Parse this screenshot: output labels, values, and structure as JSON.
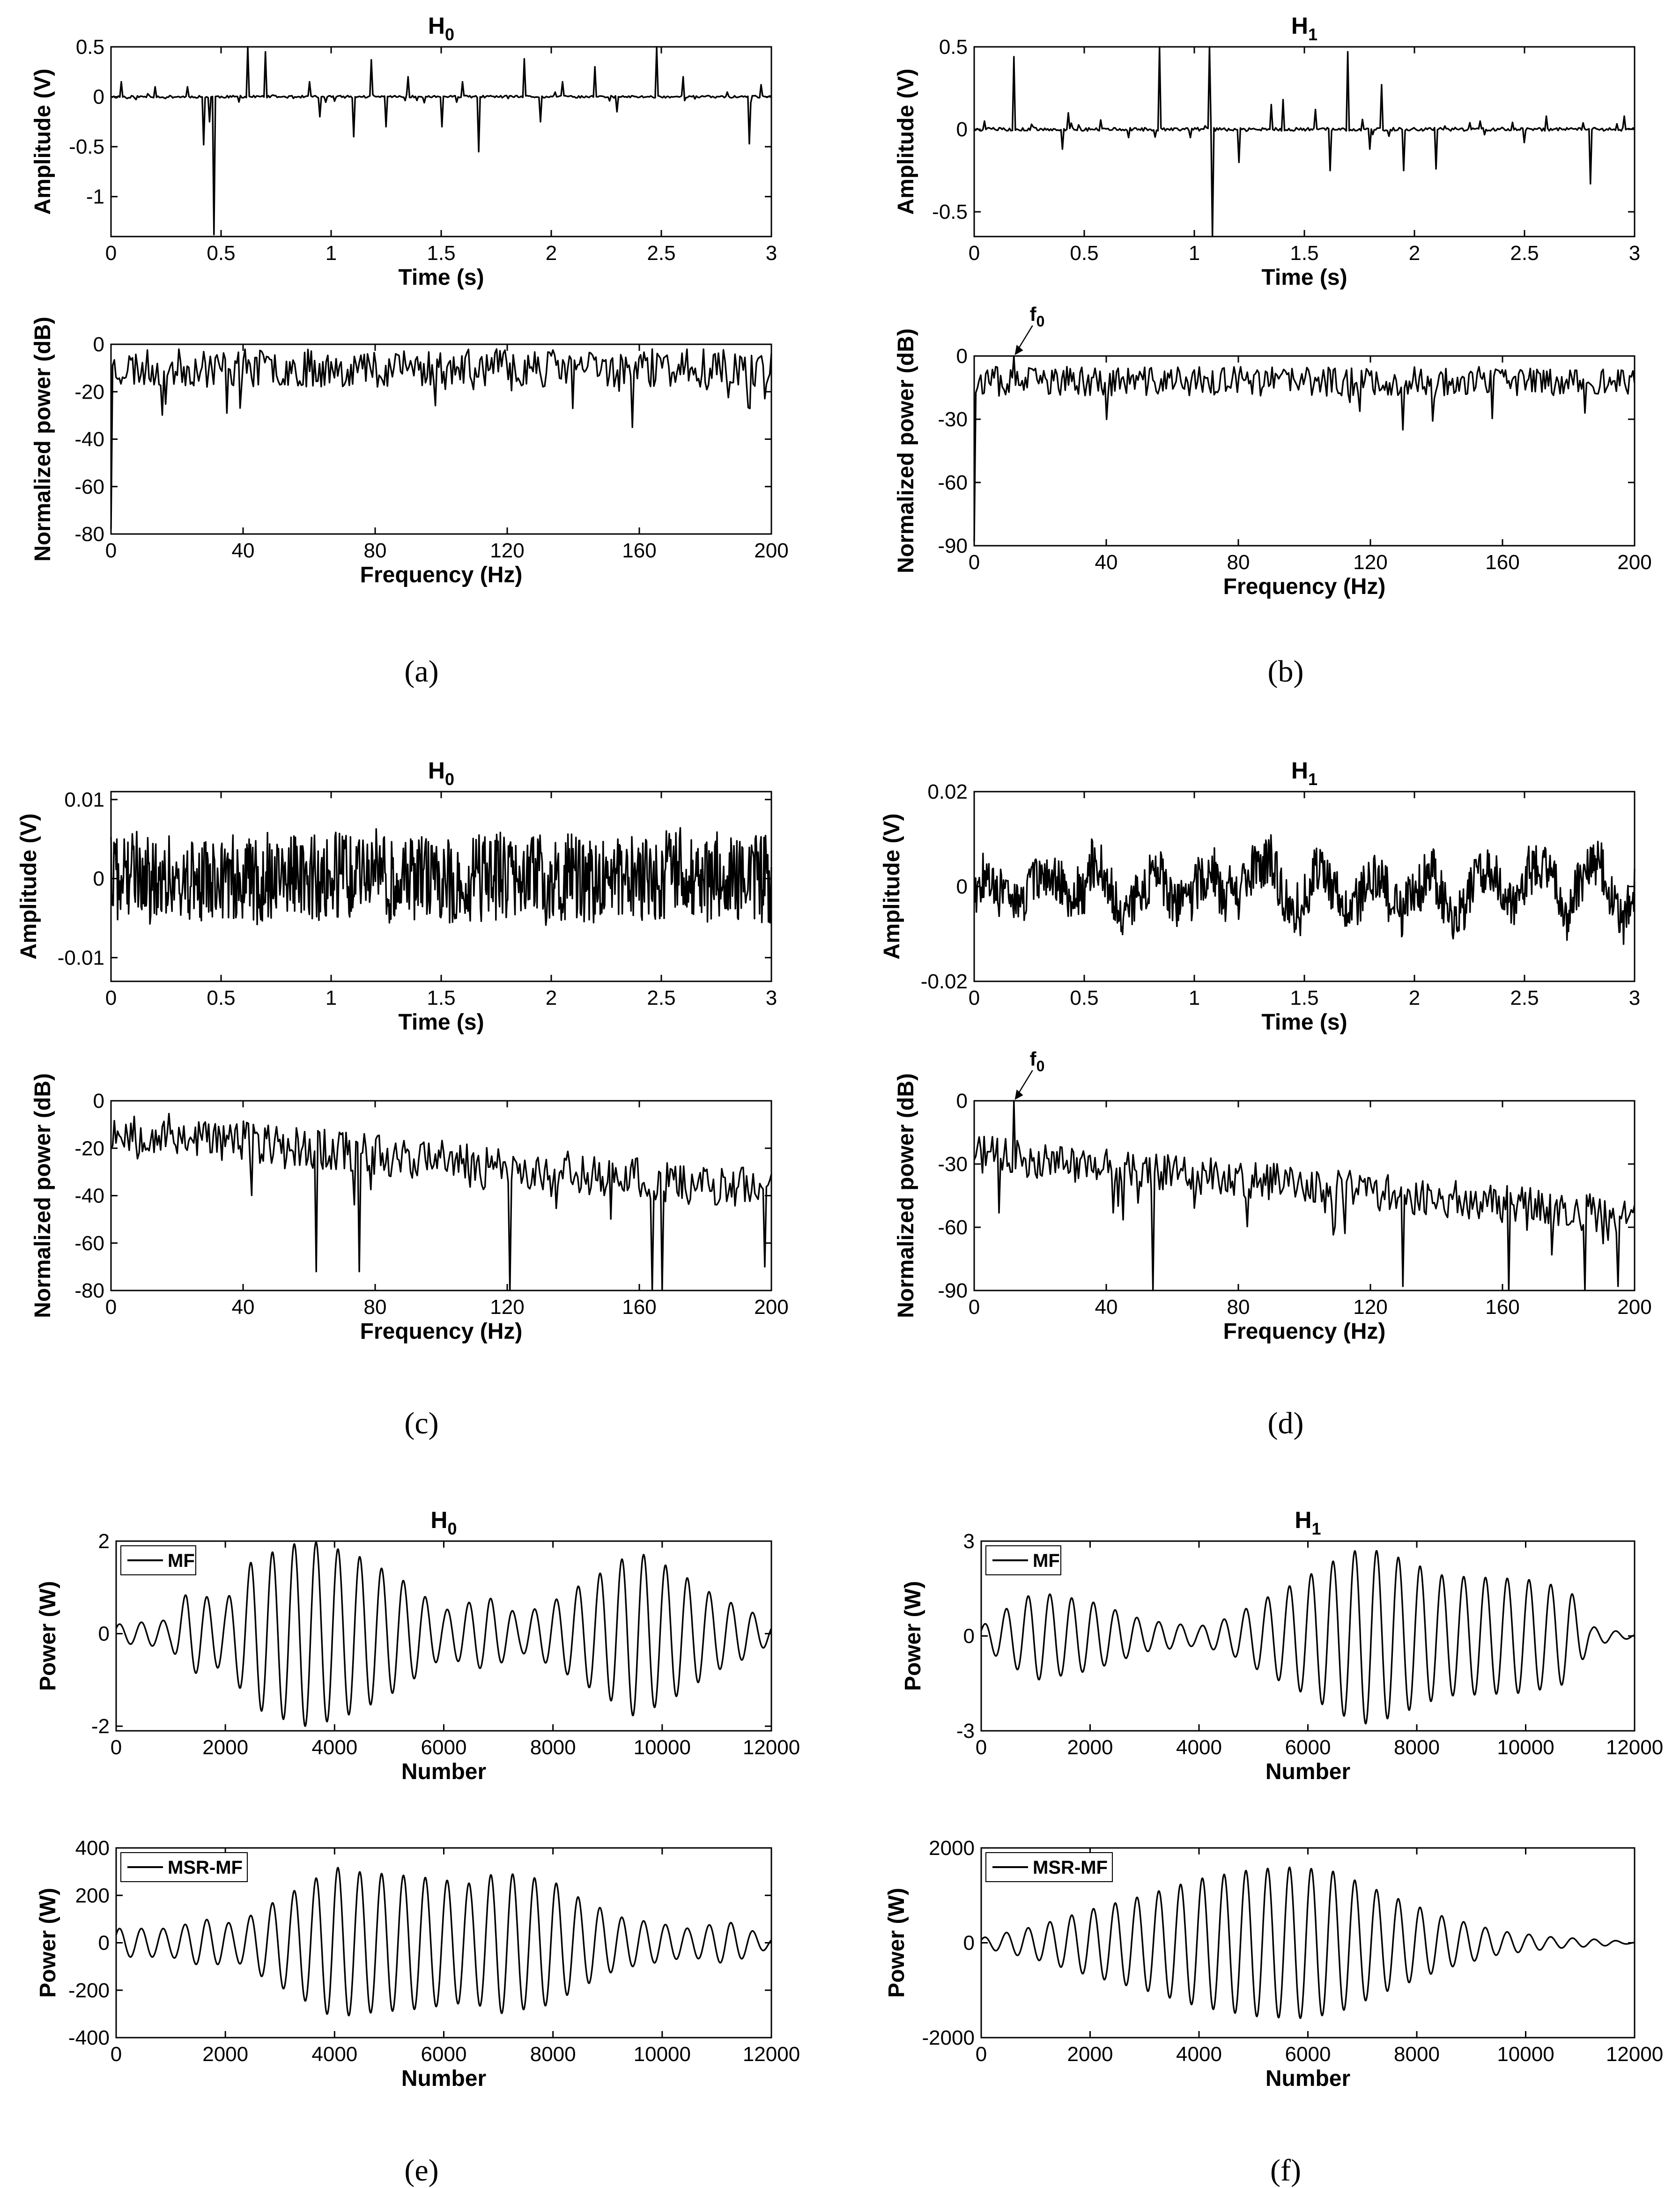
{
  "figure": {
    "subfigure_labels": [
      "(a)",
      "(b)",
      "(c)",
      "(d)",
      "(e)",
      "(f)"
    ]
  },
  "chart_data": [
    {
      "id": "a_time",
      "type": "line",
      "title": "H",
      "title_sub": "0",
      "xlabel": "Time (s)",
      "ylabel": "Amplitude (V)",
      "xlim": [
        0,
        3
      ],
      "ylim": [
        -1.4,
        0.5
      ],
      "xticks": [
        0,
        0.5,
        1,
        1.5,
        2,
        2.5,
        3
      ],
      "xtick_labels": [
        "0",
        "0.5",
        "1",
        "1.5",
        "2",
        "2.5",
        "3"
      ],
      "yticks": [
        -1,
        -0.5,
        0,
        0.5
      ],
      "ytick_labels": [
        "-1",
        "-0.5",
        "0",
        "0.5"
      ],
      "grid": false,
      "legend": null,
      "signal": {
        "kind": "spikes",
        "n": 450,
        "seed": 11,
        "noise": 0.012,
        "spikes": [
          [
            0.05,
            0.15
          ],
          [
            0.2,
            0.1
          ],
          [
            0.35,
            0.1
          ],
          [
            0.42,
            -0.48
          ],
          [
            0.45,
            -0.25
          ],
          [
            0.47,
            -1.38
          ],
          [
            0.62,
            0.5
          ],
          [
            0.7,
            0.45
          ],
          [
            0.9,
            0.15
          ],
          [
            0.95,
            -0.2
          ],
          [
            1.1,
            -0.4
          ],
          [
            1.18,
            0.37
          ],
          [
            1.25,
            -0.3
          ],
          [
            1.35,
            0.2
          ],
          [
            1.5,
            -0.3
          ],
          [
            1.6,
            0.15
          ],
          [
            1.67,
            -0.55
          ],
          [
            1.88,
            0.38
          ],
          [
            1.95,
            -0.25
          ],
          [
            2.05,
            0.15
          ],
          [
            2.2,
            0.3
          ],
          [
            2.3,
            -0.15
          ],
          [
            2.48,
            0.5
          ],
          [
            2.6,
            0.2
          ],
          [
            2.9,
            -0.47
          ],
          [
            2.95,
            0.12
          ]
        ]
      }
    },
    {
      "id": "a_freq",
      "type": "line",
      "xlabel": "Frequency (Hz)",
      "ylabel": "Normalized power (dB)",
      "xlim": [
        0,
        200
      ],
      "ylim": [
        -80,
        0
      ],
      "xticks": [
        0,
        40,
        80,
        120,
        160,
        200
      ],
      "xtick_labels": [
        "0",
        "40",
        "80",
        "120",
        "160",
        "200"
      ],
      "yticks": [
        -80,
        -60,
        -40,
        -20,
        0
      ],
      "ytick_labels": [
        "-80",
        "-60",
        "-40",
        "-20",
        "0"
      ],
      "grid": false,
      "legend": null,
      "signal": {
        "kind": "spectrum",
        "n": 400,
        "seed": 23,
        "start": -78,
        "base_start": -10,
        "base_end": -10,
        "spread": 8,
        "dip_prob": 0.04,
        "dip_depth": 15,
        "dips": [
          [
            158,
            -35
          ],
          [
            35,
            -29
          ],
          [
            140,
            -27
          ]
        ]
      }
    },
    {
      "id": "b_time",
      "type": "line",
      "title": "H",
      "title_sub": "1",
      "xlabel": "Time (s)",
      "ylabel": "Amplitude (V)",
      "xlim": [
        0,
        3
      ],
      "ylim": [
        -0.65,
        0.5
      ],
      "xticks": [
        0,
        0.5,
        1,
        1.5,
        2,
        2.5,
        3
      ],
      "xtick_labels": [
        "0",
        "0.5",
        "1",
        "1.5",
        "2",
        "2.5",
        "3"
      ],
      "yticks": [
        -0.5,
        0,
        0.5
      ],
      "ytick_labels": [
        "-0.5",
        "0",
        "0.5"
      ],
      "grid": false,
      "legend": null,
      "signal": {
        "kind": "spikes",
        "n": 450,
        "seed": 5,
        "noise": 0.01,
        "spikes": [
          [
            0.05,
            0.05
          ],
          [
            0.18,
            0.44
          ],
          [
            0.4,
            -0.12
          ],
          [
            0.43,
            0.1
          ],
          [
            0.7,
            -0.05
          ],
          [
            0.84,
            0.5
          ],
          [
            0.98,
            -0.05
          ],
          [
            1.07,
            0.5
          ],
          [
            1.08,
            -0.65
          ],
          [
            1.2,
            -0.2
          ],
          [
            1.35,
            0.15
          ],
          [
            1.4,
            0.18
          ],
          [
            1.55,
            0.12
          ],
          [
            1.62,
            -0.25
          ],
          [
            1.7,
            0.47
          ],
          [
            1.8,
            -0.12
          ],
          [
            1.85,
            0.27
          ],
          [
            1.95,
            -0.25
          ],
          [
            2.1,
            -0.24
          ],
          [
            2.3,
            0.05
          ],
          [
            2.5,
            -0.08
          ],
          [
            2.6,
            0.08
          ],
          [
            2.8,
            -0.33
          ],
          [
            2.95,
            0.08
          ]
        ]
      }
    },
    {
      "id": "b_freq",
      "type": "line",
      "xlabel": "Frequency (Hz)",
      "ylabel": "Normalized power (dB)",
      "xlim": [
        0,
        200
      ],
      "ylim": [
        -90,
        0
      ],
      "xticks": [
        0,
        40,
        80,
        120,
        160,
        200
      ],
      "xtick_labels": [
        "0",
        "40",
        "80",
        "120",
        "160",
        "200"
      ],
      "yticks": [
        -90,
        -60,
        -30,
        0
      ],
      "ytick_labels": [
        "-90",
        "-60",
        "-30",
        "0"
      ],
      "grid": false,
      "legend": null,
      "annotations": [
        {
          "text": "f",
          "sub": "0",
          "x": 12,
          "y": 0
        }
      ],
      "signal": {
        "kind": "spectrum",
        "n": 400,
        "seed": 37,
        "start": -88,
        "base_start": -12,
        "base_end": -12,
        "spread": 7,
        "dip_prob": 0.04,
        "dip_depth": 13,
        "dips": [
          [
            130,
            -35
          ],
          [
            40,
            -30
          ],
          [
            185,
            -27
          ]
        ],
        "peak": [
          12,
          0
        ]
      }
    },
    {
      "id": "c_time",
      "type": "line",
      "title": "H",
      "title_sub": "0",
      "xlabel": "Time (s)",
      "ylabel": "Amplitude (V)",
      "xlim": [
        0,
        3
      ],
      "ylim": [
        -0.013,
        0.011
      ],
      "xticks": [
        0,
        0.5,
        1,
        1.5,
        2,
        2.5,
        3
      ],
      "xtick_labels": [
        "0",
        "0.5",
        "1",
        "1.5",
        "2",
        "2.5",
        "3"
      ],
      "yticks": [
        -0.01,
        0,
        0.01
      ],
      "ytick_labels": [
        "-0.01",
        "0",
        "0.01"
      ],
      "grid": false,
      "legend": null,
      "signal": {
        "kind": "noise",
        "n": 900,
        "seed": 41,
        "amp": 0.0055,
        "walk": 0.15,
        "clip": [
          -0.013,
          0.011
        ]
      }
    },
    {
      "id": "c_freq",
      "type": "line",
      "xlabel": "Frequency (Hz)",
      "ylabel": "Normalized power (dB)",
      "xlim": [
        0,
        200
      ],
      "ylim": [
        -80,
        0
      ],
      "xticks": [
        0,
        40,
        80,
        120,
        160,
        200
      ],
      "xtick_labels": [
        "0",
        "40",
        "80",
        "120",
        "160",
        "200"
      ],
      "yticks": [
        -80,
        -60,
        -40,
        -20,
        0
      ],
      "ytick_labels": [
        "-80",
        "-60",
        "-40",
        "-20",
        "0"
      ],
      "grid": false,
      "legend": null,
      "signal": {
        "kind": "spectrum",
        "n": 400,
        "seed": 53,
        "start": -20,
        "base_start": -12,
        "base_end": -38,
        "spread": 9,
        "dip_prob": 0.07,
        "dip_depth": 22,
        "dips": [
          [
            62,
            -72
          ],
          [
            75,
            -72
          ],
          [
            121,
            -80
          ],
          [
            164,
            -80
          ],
          [
            167,
            -80
          ],
          [
            198,
            -70
          ]
        ]
      }
    },
    {
      "id": "d_time",
      "type": "line",
      "title": "H",
      "title_sub": "1",
      "xlabel": "Time (s)",
      "ylabel": "Amplitude (V)",
      "xlim": [
        0,
        3
      ],
      "ylim": [
        -0.02,
        0.02
      ],
      "xticks": [
        0,
        0.5,
        1,
        1.5,
        2,
        2.5,
        3
      ],
      "xtick_labels": [
        "0",
        "0.5",
        "1",
        "1.5",
        "2",
        "2.5",
        "3"
      ],
      "yticks": [
        -0.02,
        0,
        0.02
      ],
      "ytick_labels": [
        "-0.02",
        "0",
        "0.02"
      ],
      "grid": false,
      "legend": null,
      "signal": {
        "kind": "noise",
        "n": 900,
        "seed": 67,
        "amp": 0.005,
        "walk": 0.45,
        "osc_amp": 0.004,
        "osc_freq": 12,
        "clip": [
          -0.017,
          0.013
        ]
      }
    },
    {
      "id": "d_freq",
      "type": "line",
      "xlabel": "Frequency (Hz)",
      "ylabel": "Normalized power (dB)",
      "xlim": [
        0,
        200
      ],
      "ylim": [
        -90,
        0
      ],
      "xticks": [
        0,
        40,
        80,
        120,
        160,
        200
      ],
      "xtick_labels": [
        "0",
        "40",
        "80",
        "120",
        "160",
        "200"
      ],
      "yticks": [
        -90,
        -60,
        -30,
        0
      ],
      "ytick_labels": [
        "-90",
        "-60",
        "-30",
        "0"
      ],
      "grid": false,
      "legend": null,
      "annotations": [
        {
          "text": "f",
          "sub": "0",
          "x": 12,
          "y": 0
        }
      ],
      "signal": {
        "kind": "spectrum",
        "n": 400,
        "seed": 71,
        "start": -28,
        "base_start": -25,
        "base_end": -55,
        "spread": 9,
        "dip_prob": 0.07,
        "dip_depth": 25,
        "dips": [
          [
            54,
            -90
          ],
          [
            130,
            -88
          ],
          [
            162,
            -90
          ],
          [
            185,
            -90
          ],
          [
            195,
            -88
          ]
        ],
        "peak": [
          12,
          0
        ]
      }
    },
    {
      "id": "e_mf",
      "type": "line",
      "title": "H",
      "title_sub": "0",
      "xlabel": "Number",
      "ylabel": "Power (W)",
      "xlim": [
        0,
        12000
      ],
      "ylim": [
        -2.1,
        2
      ],
      "xticks": [
        0,
        2000,
        4000,
        6000,
        8000,
        10000,
        12000
      ],
      "xtick_labels": [
        "0",
        "2000",
        "4000",
        "6000",
        "8000",
        "10000",
        "12000"
      ],
      "yticks": [
        -2,
        0,
        2
      ],
      "ytick_labels": [
        "-2",
        "0",
        "2"
      ],
      "grid": false,
      "legend": {
        "position": "top-left",
        "entries": [
          "MF"
        ]
      },
      "signal": {
        "kind": "wave",
        "n": 1800,
        "period": 400,
        "env": [
          [
            0,
            0.2
          ],
          [
            1000,
            0.3
          ],
          [
            1300,
            0.9
          ],
          [
            2000,
            0.7
          ],
          [
            2500,
            1.6
          ],
          [
            3400,
            2.0
          ],
          [
            3600,
            2.0
          ],
          [
            4400,
            1.7
          ],
          [
            5200,
            1.2
          ],
          [
            6000,
            0.5
          ],
          [
            6800,
            0.8
          ],
          [
            7400,
            0.4
          ],
          [
            8000,
            0.7
          ],
          [
            9000,
            1.4
          ],
          [
            9500,
            1.8
          ],
          [
            10200,
            1.4
          ],
          [
            11000,
            0.8
          ],
          [
            11600,
            0.5
          ],
          [
            12000,
            0.2
          ]
        ]
      }
    },
    {
      "id": "e_msr",
      "type": "line",
      "xlabel": "Number",
      "ylabel": "Power (W)",
      "xlim": [
        0,
        12000
      ],
      "ylim": [
        -400,
        400
      ],
      "xticks": [
        0,
        2000,
        4000,
        6000,
        8000,
        10000,
        12000
      ],
      "xtick_labels": [
        "0",
        "2000",
        "4000",
        "6000",
        "8000",
        "10000",
        "12000"
      ],
      "yticks": [
        -400,
        -200,
        0,
        200,
        400
      ],
      "ytick_labels": [
        "-400",
        "-200",
        "0",
        "200",
        "400"
      ],
      "grid": false,
      "legend": {
        "position": "top-left",
        "entries": [
          "MSR-MF"
        ]
      },
      "signal": {
        "kind": "wave",
        "n": 1800,
        "period": 400,
        "env": [
          [
            0,
            60
          ],
          [
            1000,
            60
          ],
          [
            1600,
            100
          ],
          [
            2200,
            80
          ],
          [
            2800,
            160
          ],
          [
            3500,
            250
          ],
          [
            4000,
            320
          ],
          [
            4400,
            300
          ],
          [
            5500,
            280
          ],
          [
            6500,
            250
          ],
          [
            7000,
            300
          ],
          [
            8000,
            260
          ],
          [
            8400,
            200
          ],
          [
            9200,
            110
          ],
          [
            10500,
            60
          ],
          [
            11200,
            90
          ],
          [
            12000,
            20
          ]
        ]
      }
    },
    {
      "id": "f_mf",
      "type": "line",
      "title": "H",
      "title_sub": "1",
      "xlabel": "Number",
      "ylabel": "Power (W)",
      "xlim": [
        0,
        12000
      ],
      "ylim": [
        -3,
        3
      ],
      "xticks": [
        0,
        2000,
        4000,
        6000,
        8000,
        10000,
        12000
      ],
      "xtick_labels": [
        "0",
        "2000",
        "4000",
        "6000",
        "8000",
        "10000",
        "12000"
      ],
      "yticks": [
        -3,
        0,
        3
      ],
      "ytick_labels": [
        "-3",
        "0",
        "3"
      ],
      "grid": false,
      "legend": {
        "position": "top-left",
        "entries": [
          "MF"
        ]
      },
      "signal": {
        "kind": "wave",
        "n": 1800,
        "period": 400,
        "env": [
          [
            0,
            0.3
          ],
          [
            400,
            0.8
          ],
          [
            1000,
            1.4
          ],
          [
            2000,
            1.1
          ],
          [
            3000,
            0.5
          ],
          [
            4000,
            0.3
          ],
          [
            4600,
            0.6
          ],
          [
            5000,
            1.0
          ],
          [
            5800,
            1.7
          ],
          [
            6500,
            2.4
          ],
          [
            7000,
            2.8
          ],
          [
            7500,
            2.6
          ],
          [
            8500,
            1.9
          ],
          [
            10000,
            1.8
          ],
          [
            10800,
            1.5
          ],
          [
            11200,
            0.3
          ],
          [
            12000,
            0.05
          ]
        ]
      }
    },
    {
      "id": "f_msr",
      "type": "line",
      "xlabel": "Number",
      "ylabel": "Power (W)",
      "xlim": [
        0,
        12000
      ],
      "ylim": [
        -2000,
        2000
      ],
      "xticks": [
        0,
        2000,
        4000,
        6000,
        8000,
        10000,
        12000
      ],
      "xtick_labels": [
        "0",
        "2000",
        "4000",
        "6000",
        "8000",
        "10000",
        "12000"
      ],
      "yticks": [
        -2000,
        0,
        2000
      ],
      "ytick_labels": [
        "-2000",
        "0",
        "2000"
      ],
      "grid": false,
      "legend": {
        "position": "top-left",
        "entries": [
          "MSR-MF"
        ]
      },
      "signal": {
        "kind": "wave",
        "n": 1800,
        "period": 400,
        "env": [
          [
            0,
            100
          ],
          [
            1000,
            350
          ],
          [
            2000,
            700
          ],
          [
            3000,
            1000
          ],
          [
            4000,
            1350
          ],
          [
            5000,
            1550
          ],
          [
            5800,
            1600
          ],
          [
            6500,
            1500
          ],
          [
            7500,
            1000
          ],
          [
            8500,
            550
          ],
          [
            9500,
            250
          ],
          [
            10500,
            120
          ],
          [
            11500,
            60
          ],
          [
            12000,
            10
          ]
        ]
      }
    }
  ]
}
